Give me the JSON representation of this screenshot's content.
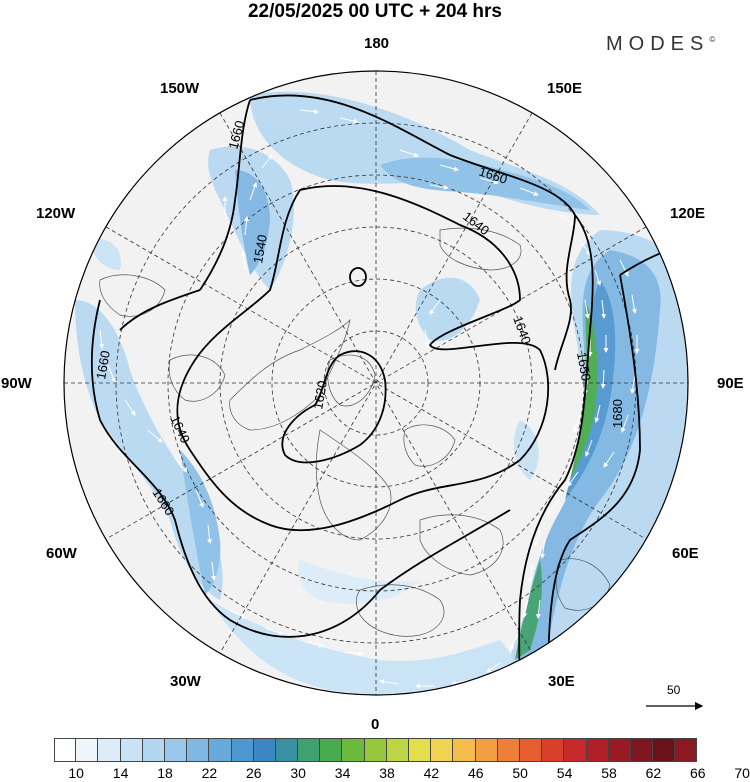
{
  "title": "22/05/2025  00 UTC  + 204 hrs",
  "brand": "MODES",
  "brand_mark": "©",
  "longitude_labels": {
    "lon_180": "180",
    "lon_150e": "150E",
    "lon_120e": "120E",
    "lon_90e": "90E",
    "lon_60e": "60E",
    "lon_30e": "30E",
    "lon_0": "0",
    "lon_30w": "30W",
    "lon_60w": "60W",
    "lon_90w": "90W",
    "lon_120w": "120W",
    "lon_150w": "150W"
  },
  "contour_labels": [
    "1660",
    "1660",
    "1640",
    "1540",
    "1660",
    "1640",
    "1620",
    "1640",
    "1660",
    "1640",
    "1680",
    "1650"
  ],
  "vector_scale": "50",
  "colorbar": {
    "colors": [
      "#ffffff",
      "#eef6fc",
      "#dcedf9",
      "#c8e3f5",
      "#b1d6f0",
      "#98c8eb",
      "#7fb9e3",
      "#66a9da",
      "#4f97cf",
      "#3c86c3",
      "#3a90a0",
      "#3fa070",
      "#4aab4e",
      "#6bba3f",
      "#95c83d",
      "#bdd545",
      "#e2de4c",
      "#f3d452",
      "#f5bb4b",
      "#f29f43",
      "#ee7f3a",
      "#e65d32",
      "#d9402c",
      "#c72a2a",
      "#b11f26",
      "#981a22",
      "#7f1520",
      "#6a111b",
      "#8a1a20"
    ],
    "labels": [
      "10",
      "14",
      "18",
      "22",
      "26",
      "30",
      "34",
      "38",
      "42",
      "46",
      "50",
      "54",
      "58",
      "62",
      "66",
      "70"
    ]
  }
}
